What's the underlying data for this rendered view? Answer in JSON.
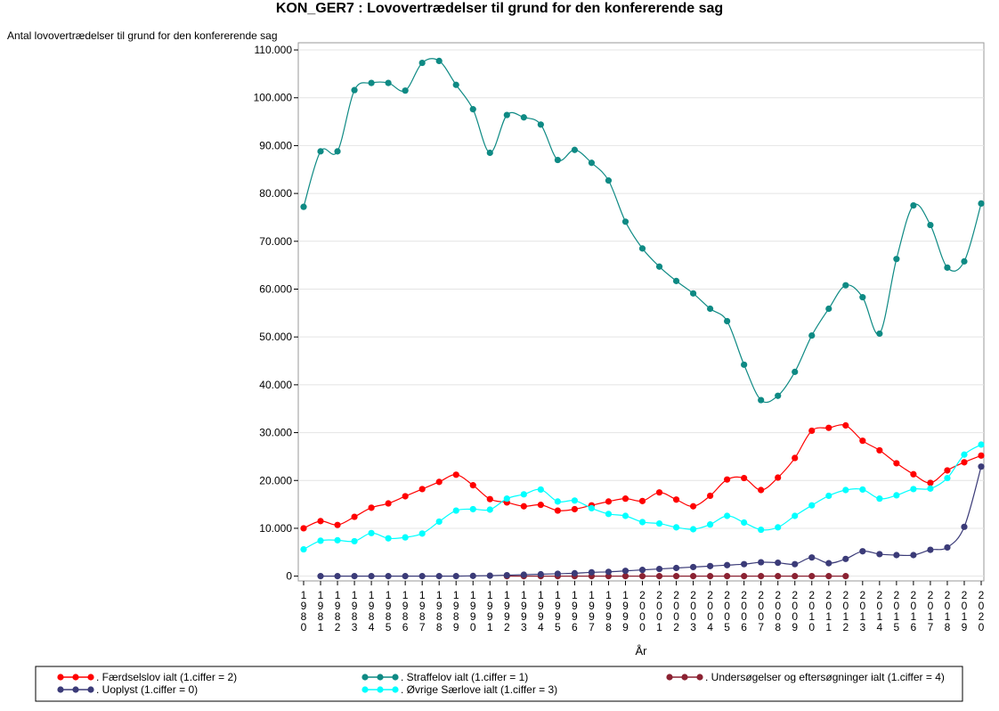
{
  "chart_data": {
    "type": "line",
    "title": "KON_GER7 : Lovovertrædelser til grund for den konfererende sag",
    "y_label": "Antal lovovertrædelser til grund for den konfererende sag",
    "x_label": "År",
    "categories": [
      "1980",
      "1981",
      "1982",
      "1983",
      "1984",
      "1985",
      "1986",
      "1987",
      "1988",
      "1989",
      "1990",
      "1991",
      "1992",
      "1993",
      "1994",
      "1995",
      "1996",
      "1997",
      "1998",
      "1999",
      "2000",
      "2001",
      "2002",
      "2003",
      "2004",
      "2005",
      "2006",
      "2007",
      "2008",
      "2009",
      "2010",
      "2011",
      "2012",
      "2013",
      "2014",
      "2015",
      "2016",
      "2017",
      "2018",
      "2019",
      "2020"
    ],
    "ylim": [
      -1000,
      111500
    ],
    "yticks": [
      0,
      {
        "value": 10000,
        "label": "10.000"
      },
      {
        "value": 20000,
        "label": "20.000"
      },
      {
        "value": 30000,
        "label": "30.000"
      },
      {
        "value": 40000,
        "label": "40.000"
      },
      {
        "value": 50000,
        "label": "50.000"
      },
      {
        "value": 60000,
        "label": "60.000"
      },
      {
        "value": 70000,
        "label": "70.000"
      },
      {
        "value": 80000,
        "label": "80.000"
      },
      {
        "value": 90000,
        "label": "90.000"
      },
      {
        "value": 100000,
        "label": "100.000"
      },
      {
        "value": 110000,
        "label": "110.000"
      }
    ],
    "grid": true,
    "legend": "bottom",
    "series": [
      {
        "name": ". Færdselslov ialt (1.ciffer = 2)",
        "color": "#ff0000",
        "values": [
          10000,
          11500,
          10700,
          12400,
          14300,
          15200,
          16700,
          18200,
          19700,
          21200,
          19000,
          16100,
          15400,
          14600,
          14900,
          13700,
          14000,
          14800,
          15600,
          16200,
          15700,
          17500,
          16000,
          14600,
          16800,
          20200,
          20500,
          18000,
          20600,
          24700,
          30400,
          31000,
          31500,
          28300,
          26300,
          23600,
          21300,
          19500,
          22100,
          23800,
          25200
        ]
      },
      {
        "name": ". Straffelov ialt (1.ciffer = 1)",
        "color": "#0e8a84",
        "values": [
          77200,
          88800,
          88800,
          101600,
          103100,
          103100,
          101500,
          107300,
          107700,
          102700,
          97600,
          88500,
          96400,
          95900,
          94400,
          87000,
          89100,
          86400,
          82700,
          74100,
          68500,
          64700,
          61700,
          59100,
          55900,
          53300,
          44200,
          36800,
          37700,
          42700,
          50300,
          55900,
          60800,
          58300,
          50700,
          66300,
          77500,
          73400,
          64500,
          65800,
          77900
        ]
      },
      {
        "name": ". Undersøgelser og eftersøgninger ialt (1.ciffer = 4)",
        "color": "#8b2232",
        "values": [
          null,
          null,
          null,
          null,
          null,
          null,
          null,
          null,
          null,
          null,
          null,
          null,
          0,
          0,
          0,
          0,
          0,
          0,
          0,
          0,
          0,
          0,
          0,
          0,
          0,
          0,
          0,
          0,
          0,
          0,
          0,
          0,
          0,
          null,
          null,
          null,
          null,
          null,
          null,
          null,
          null
        ]
      },
      {
        "name": ". Uoplyst (1.ciffer = 0)",
        "color": "#3b3b78",
        "values": [
          null,
          0,
          0,
          0,
          0,
          0,
          0,
          0,
          0,
          0,
          50,
          100,
          200,
          300,
          400,
          500,
          600,
          800,
          900,
          1100,
          1300,
          1500,
          1700,
          1900,
          2100,
          2300,
          2500,
          2900,
          2800,
          2500,
          3900,
          2700,
          3600,
          5200,
          4600,
          4400,
          4400,
          5500,
          6000,
          10300,
          22900
        ]
      },
      {
        "name": ". Øvrige Særlove ialt (1.ciffer = 3)",
        "color": "#00ffff",
        "values": [
          5600,
          7400,
          7500,
          7300,
          9000,
          7900,
          8100,
          8900,
          11400,
          13700,
          14000,
          13900,
          16200,
          17100,
          18100,
          15600,
          15800,
          14200,
          13000,
          12600,
          11300,
          11000,
          10200,
          9800,
          10800,
          12600,
          11200,
          9700,
          10200,
          12600,
          14800,
          16800,
          18000,
          18100,
          16200,
          16900,
          18200,
          18300,
          20500,
          25400,
          27500
        ]
      }
    ]
  }
}
